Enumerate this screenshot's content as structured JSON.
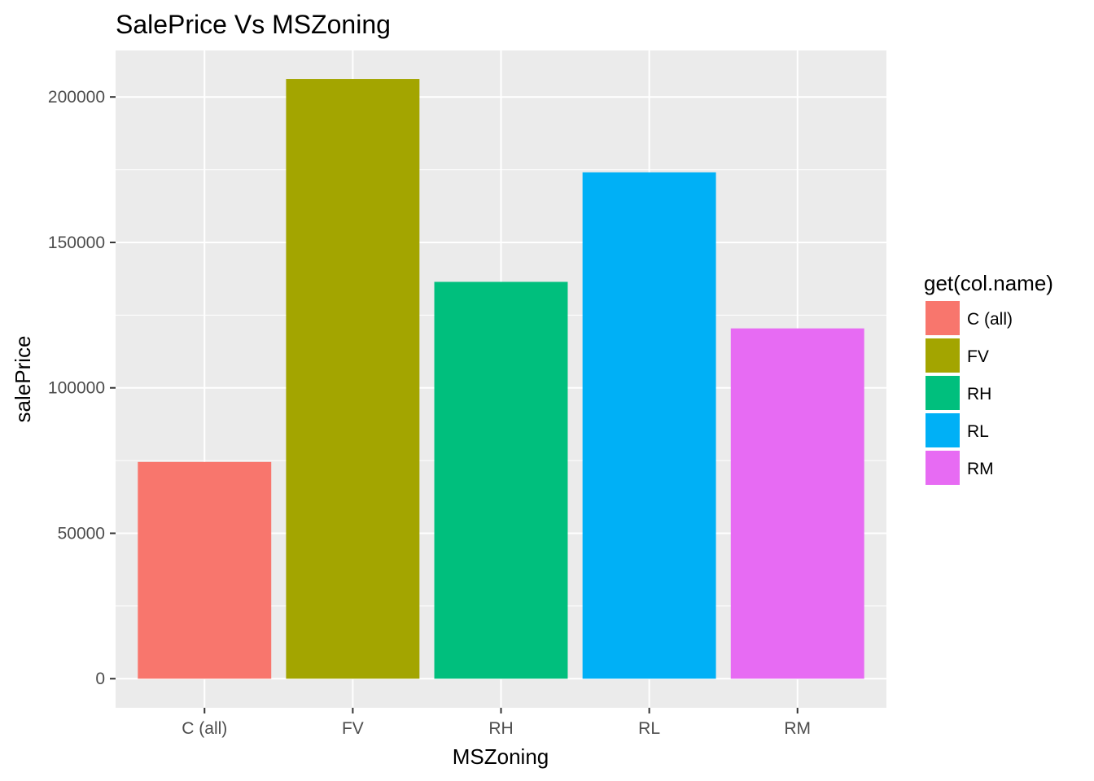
{
  "chart_data": {
    "type": "bar",
    "title": "SalePrice Vs MSZoning",
    "xlabel": "MSZoning",
    "ylabel": "salePrice",
    "categories": [
      "C (all)",
      "FV",
      "RH",
      "RL",
      "RM"
    ],
    "values": [
      74528,
      206201,
      136434,
      174088,
      120437
    ],
    "colors": [
      "#F8766D",
      "#A3A500",
      "#00BF7D",
      "#00B0F6",
      "#E76BF3"
    ],
    "ylim": [
      -10000,
      216000
    ],
    "yticks": [
      0,
      50000,
      100000,
      150000,
      200000
    ],
    "ytick_labels": [
      "0",
      "50000",
      "100000",
      "150000",
      "200000"
    ],
    "grid": true,
    "panel_background": "#EBEBEB",
    "legend": {
      "title": "get(col.name)",
      "placement": "right",
      "entries": [
        "C (all)",
        "FV",
        "RH",
        "RL",
        "RM"
      ]
    }
  }
}
